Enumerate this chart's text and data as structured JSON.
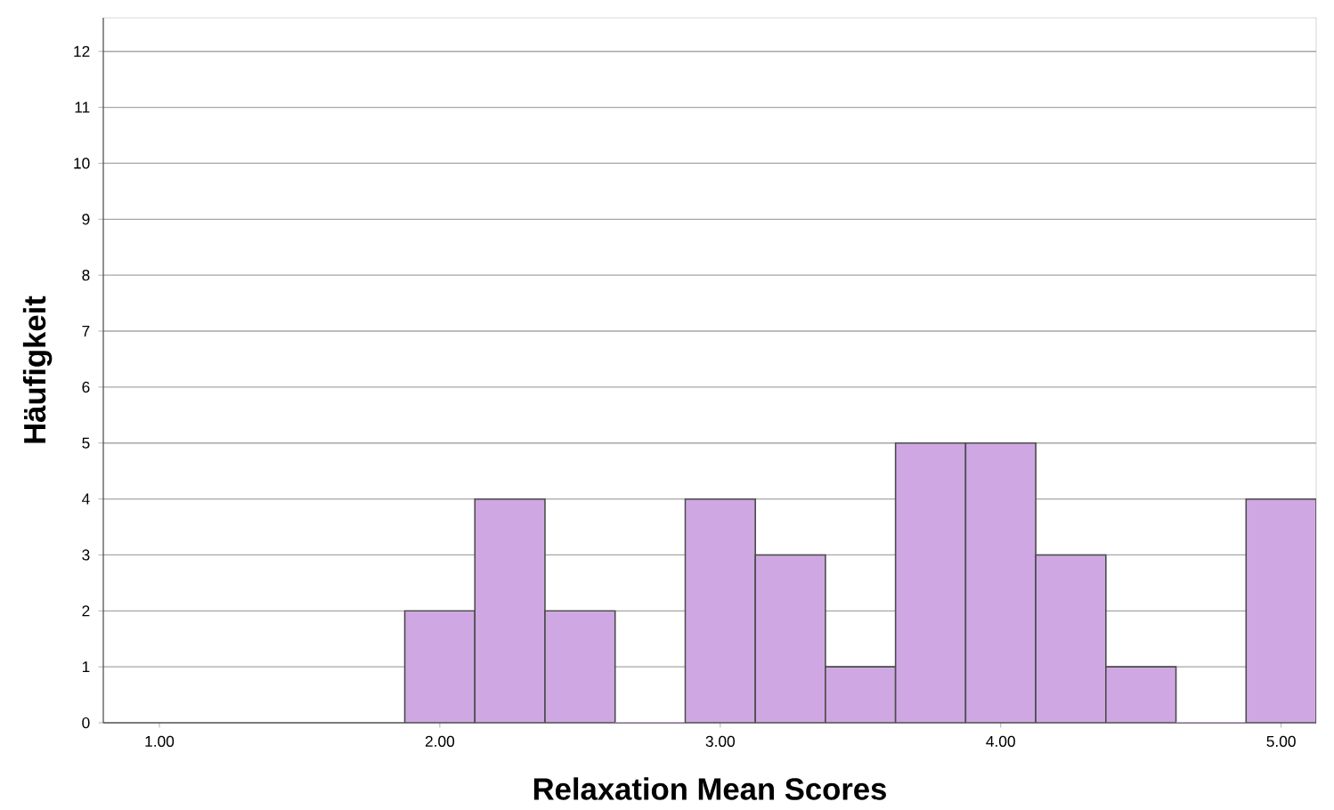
{
  "chart_data": {
    "type": "histogram",
    "xlabel": "Relaxation Mean Scores",
    "ylabel": "Häufigkeit",
    "bins": [
      1.875,
      2.125,
      2.375,
      2.625,
      2.875,
      3.125,
      3.375,
      3.625,
      3.875,
      4.125,
      4.375,
      4.625,
      4.875,
      5.125
    ],
    "values": [
      2,
      4,
      2,
      0,
      4,
      3,
      1,
      5,
      5,
      3,
      1,
      0,
      4
    ],
    "color": "#cfa8e3",
    "xlim": [
      0.8,
      5.125
    ],
    "xticks": [
      {
        "value": 1,
        "label": "1.00"
      },
      {
        "value": 2,
        "label": "2.00"
      },
      {
        "value": 3,
        "label": "3.00"
      },
      {
        "value": 4,
        "label": "4.00"
      },
      {
        "value": 5,
        "label": "5.00"
      }
    ],
    "ylim": [
      0,
      12.6
    ],
    "yticks": [
      0,
      1,
      2,
      3,
      4,
      5,
      6,
      7,
      8,
      9,
      10,
      11,
      12
    ],
    "grid": "y"
  }
}
